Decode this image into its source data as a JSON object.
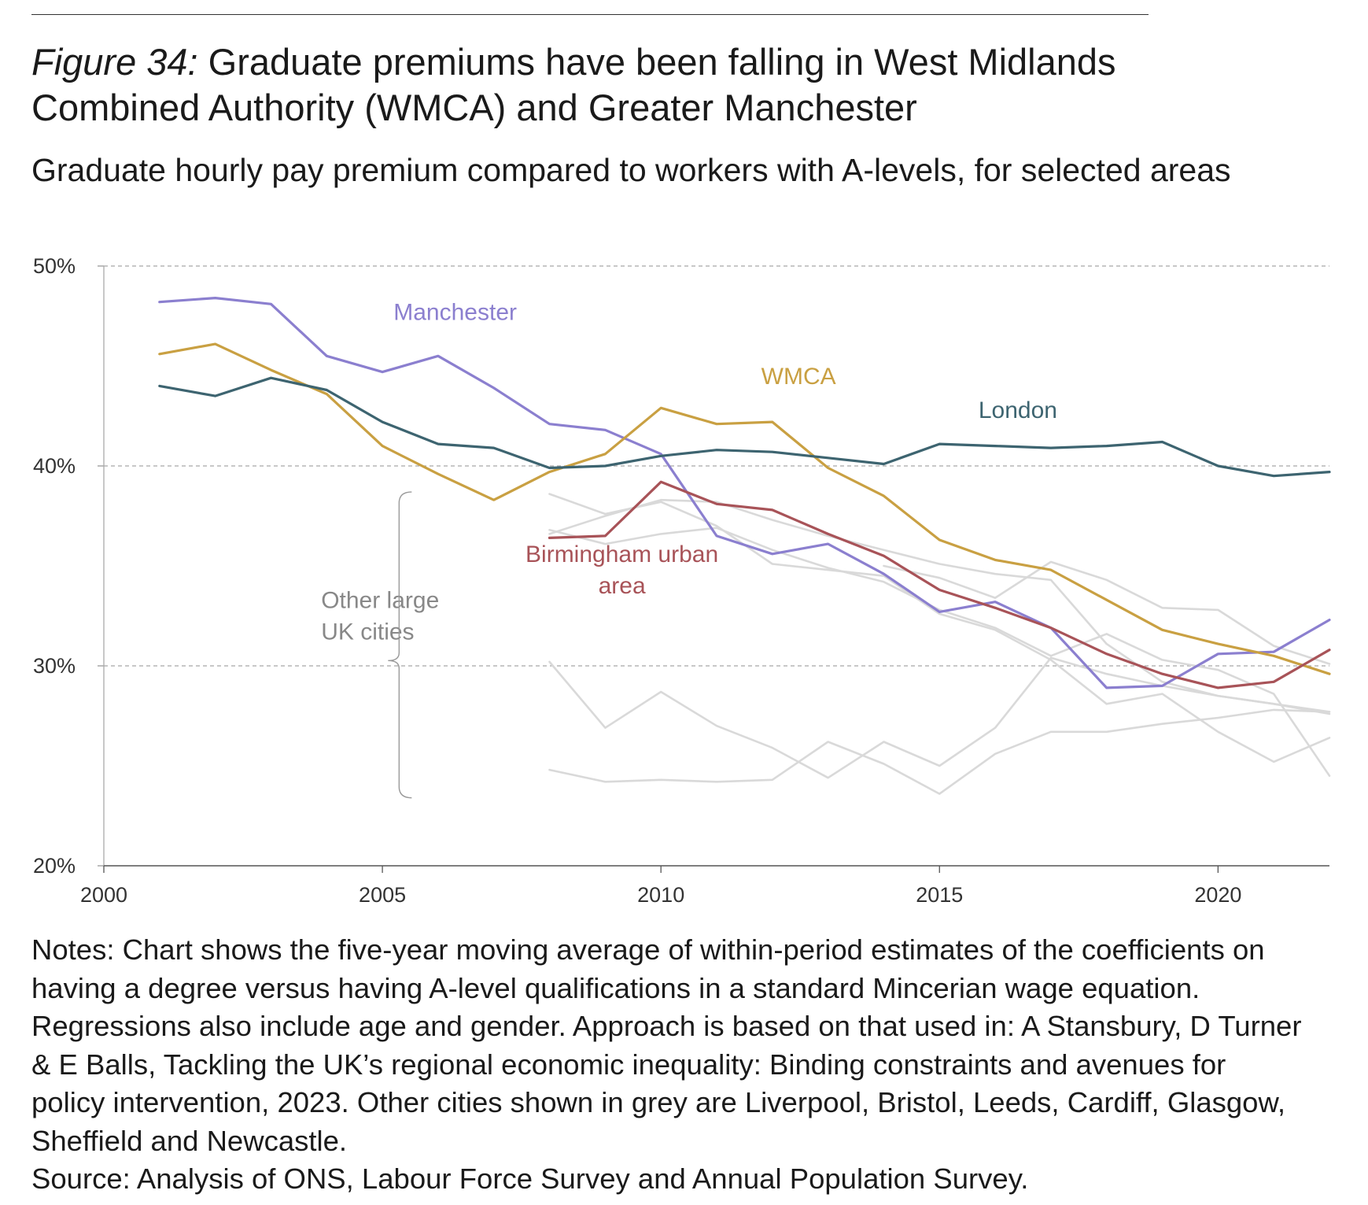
{
  "figure": {
    "number_label": "Figure 34:",
    "title": " Graduate premiums have been falling in West Midlands Combined Authority (WMCA) and Greater Manchester",
    "subtitle": "Graduate hourly pay premium compared to workers with A-levels, for selected areas"
  },
  "chart_data": {
    "type": "line",
    "xlim": [
      2000,
      2022
    ],
    "ylim": [
      20,
      50
    ],
    "x_ticks": [
      2000,
      2005,
      2010,
      2015,
      2020
    ],
    "y_ticks": [
      20,
      30,
      40,
      50
    ],
    "y_tick_labels": [
      "20%",
      "30%",
      "40%",
      "50%"
    ],
    "grid": "horizontal dashed",
    "series": [
      {
        "name": "Manchester",
        "color": "#8b7fcf",
        "x": [
          2001,
          2002,
          2003,
          2004,
          2005,
          2006,
          2007,
          2008,
          2009,
          2010,
          2011,
          2012,
          2013,
          2014,
          2015,
          2016,
          2017,
          2018,
          2019,
          2020,
          2021,
          2022
        ],
        "values": [
          48.2,
          48.4,
          48.1,
          45.5,
          44.7,
          45.5,
          43.9,
          42.1,
          41.8,
          40.6,
          36.5,
          35.6,
          36.1,
          34.6,
          32.7,
          33.2,
          31.9,
          28.9,
          29.0,
          30.6,
          30.7,
          32.3
        ]
      },
      {
        "name": "WMCA",
        "color": "#c9a042",
        "x": [
          2001,
          2002,
          2003,
          2004,
          2005,
          2006,
          2007,
          2008,
          2009,
          2010,
          2011,
          2012,
          2013,
          2014,
          2015,
          2016,
          2017,
          2018,
          2019,
          2020,
          2021,
          2022
        ],
        "values": [
          45.6,
          46.1,
          44.8,
          43.6,
          41.0,
          39.6,
          38.3,
          39.7,
          40.6,
          42.9,
          42.1,
          42.2,
          39.9,
          38.5,
          36.3,
          35.3,
          34.8,
          33.3,
          31.8,
          31.1,
          30.5,
          29.6
        ]
      },
      {
        "name": "London",
        "color": "#3d6470",
        "x": [
          2001,
          2002,
          2003,
          2004,
          2005,
          2006,
          2007,
          2008,
          2009,
          2010,
          2011,
          2012,
          2013,
          2014,
          2015,
          2016,
          2017,
          2018,
          2019,
          2020,
          2021,
          2022
        ],
        "values": [
          44.0,
          43.5,
          44.4,
          43.8,
          42.2,
          41.1,
          40.9,
          39.9,
          40.0,
          40.5,
          40.8,
          40.7,
          40.4,
          40.1,
          41.1,
          41.0,
          40.9,
          41.0,
          41.2,
          40.0,
          39.5,
          39.7
        ]
      },
      {
        "name": "Birmingham urban area",
        "color": "#a85358",
        "x": [
          2008,
          2009,
          2010,
          2011,
          2012,
          2013,
          2014,
          2015,
          2016,
          2017,
          2018,
          2019,
          2020,
          2021,
          2022
        ],
        "values": [
          36.4,
          36.5,
          39.2,
          38.1,
          37.8,
          36.6,
          35.5,
          33.8,
          32.9,
          31.9,
          30.6,
          29.6,
          28.9,
          29.2,
          30.8
        ]
      },
      {
        "name": "Other large UK cities 1",
        "color": "#d9d9d9",
        "x": [
          2008,
          2009,
          2010,
          2011,
          2012,
          2013,
          2014,
          2015,
          2016,
          2017,
          2018,
          2019,
          2020,
          2021,
          2022
        ],
        "values": [
          38.6,
          37.6,
          38.2,
          37.0,
          35.1,
          34.8,
          34.5,
          32.6,
          31.8,
          30.3,
          28.1,
          28.6,
          26.7,
          25.2,
          26.4
        ]
      },
      {
        "name": "Other large UK cities 2",
        "color": "#d9d9d9",
        "x": [
          2008,
          2009,
          2010,
          2011,
          2012,
          2013,
          2014,
          2015,
          2016,
          2017,
          2018,
          2019,
          2020,
          2021,
          2022
        ],
        "values": [
          36.6,
          37.5,
          38.3,
          38.2,
          37.3,
          36.5,
          35.8,
          35.1,
          34.6,
          34.3,
          31.1,
          29.2,
          28.5,
          28.1,
          27.7
        ]
      },
      {
        "name": "Other large UK cities 3",
        "color": "#d9d9d9",
        "x": [
          2008,
          2009,
          2010,
          2011,
          2012,
          2013,
          2014,
          2015,
          2016,
          2017,
          2018,
          2019,
          2020,
          2021,
          2022
        ],
        "values": [
          36.8,
          36.1,
          36.6,
          36.9,
          35.8,
          34.9,
          34.2,
          32.8,
          31.9,
          30.5,
          31.6,
          30.3,
          29.8,
          28.6,
          24.5
        ]
      },
      {
        "name": "Other large UK cities 4",
        "color": "#d9d9d9",
        "x": [
          2008,
          2009,
          2010,
          2011,
          2012,
          2013,
          2014,
          2015,
          2016,
          2017,
          2018,
          2019,
          2020,
          2021,
          2022
        ],
        "values": [
          30.2,
          26.9,
          28.7,
          27.0,
          25.9,
          24.4,
          26.2,
          25.0,
          26.9,
          30.4,
          29.6,
          29.0,
          28.5,
          28.1,
          27.6
        ]
      },
      {
        "name": "Other large UK cities 5",
        "color": "#d9d9d9",
        "x": [
          2008,
          2009,
          2010,
          2011,
          2012,
          2013,
          2014,
          2015,
          2016,
          2017,
          2018,
          2019,
          2020,
          2021,
          2022
        ],
        "values": [
          24.8,
          24.2,
          24.3,
          24.2,
          24.3,
          26.2,
          25.1,
          23.6,
          25.6,
          26.7,
          26.7,
          27.1,
          27.4,
          27.8,
          27.7
        ]
      },
      {
        "name": "Other large UK cities 6",
        "color": "#d9d9d9",
        "x": [
          2014,
          2015,
          2016,
          2017,
          2018,
          2019,
          2020,
          2021,
          2022
        ],
        "values": [
          35.0,
          34.4,
          33.4,
          35.2,
          34.3,
          32.9,
          32.8,
          31.0,
          30.1
        ]
      }
    ],
    "annotations": [
      {
        "text": "Manchester",
        "color": "#8b7fcf",
        "x": 2005.2,
        "y": 47.3
      },
      {
        "text": "WMCA",
        "color": "#c9a042",
        "x": 2011.8,
        "y": 44.1
      },
      {
        "text": "London",
        "color": "#3d6470",
        "x": 2015.7,
        "y": 42.4
      },
      {
        "text": "Birmingham urban area",
        "lines": [
          "Birmingham urban",
          "area"
        ],
        "color": "#a85358",
        "x": 2009.3,
        "y": 35.2
      },
      {
        "text": "Other large UK cities",
        "lines": [
          "Other large",
          "UK cities"
        ],
        "color": "#888888",
        "x": 2003.9,
        "y": 32.9
      }
    ],
    "bracket": {
      "y_range": [
        23.4,
        38.7
      ],
      "x": 2005.3
    }
  },
  "notes": [
    "Notes: Chart shows the five-year moving average of within-period estimates of the coefficients on having a degree versus having A-level qualifications in a standard Mincerian wage equation. Regressions also include age and gender. Approach is based on that used in: A Stansbury, D Turner & E Balls, Tackling the UK’s regional economic inequality: Binding constraints and avenues for policy intervention, 2023. Other cities shown in grey are Liverpool, Bristol, Leeds, Cardiff, Glasgow, Sheffield and Newcastle.",
    "Source: Analysis of ONS, Labour Force Survey and Annual Population Survey."
  ]
}
